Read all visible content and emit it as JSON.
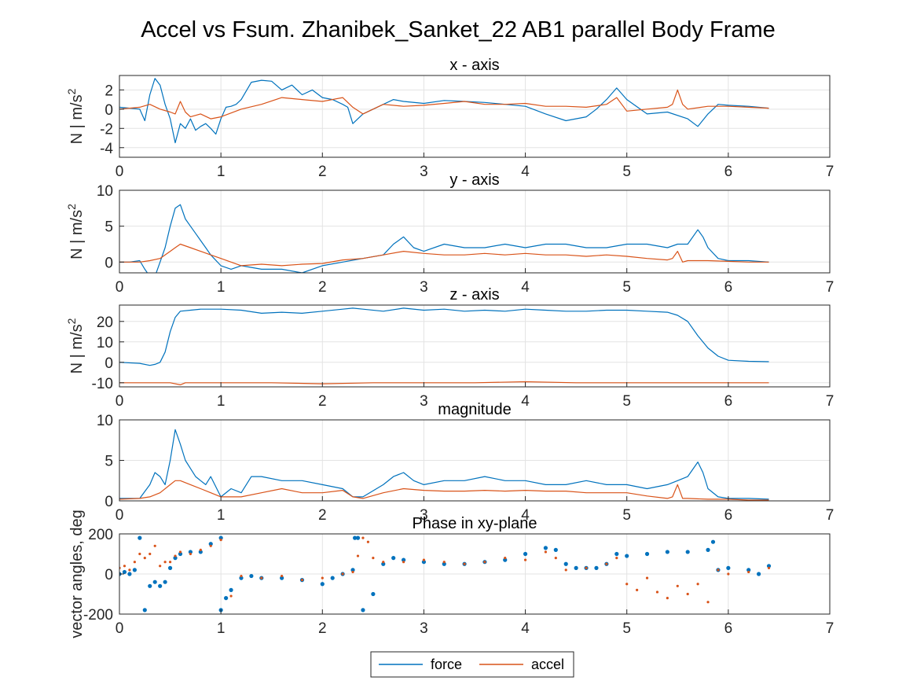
{
  "figure": {
    "title": "Accel vs Fsum. Zhanibek_Sanket_22    AB1    parallel  Body Frame"
  },
  "legend": {
    "position": "bottom-center",
    "entries": [
      {
        "label": "force",
        "color": "#0072BD"
      },
      {
        "label": "accel",
        "color": "#D95319"
      }
    ]
  },
  "chart_data": [
    {
      "type": "line",
      "title": "x - axis",
      "ylabel": "N | m/s^2",
      "xlim": [
        0,
        7
      ],
      "ylim": [
        -5,
        3.5
      ],
      "xticks": [
        0,
        1,
        2,
        3,
        4,
        5,
        6,
        7
      ],
      "yticks": [
        -4,
        -2,
        0,
        2
      ],
      "grid": true,
      "series": [
        {
          "name": "force",
          "color": "#0072BD",
          "x": [
            0,
            0.1,
            0.2,
            0.25,
            0.3,
            0.35,
            0.4,
            0.45,
            0.5,
            0.55,
            0.6,
            0.65,
            0.7,
            0.75,
            0.8,
            0.85,
            0.9,
            0.95,
            1.0,
            1.05,
            1.1,
            1.15,
            1.2,
            1.3,
            1.4,
            1.5,
            1.6,
            1.7,
            1.8,
            1.9,
            2.0,
            2.1,
            2.2,
            2.25,
            2.3,
            2.4,
            2.5,
            2.6,
            2.7,
            2.8,
            3.0,
            3.2,
            3.4,
            3.6,
            3.8,
            4.0,
            4.2,
            4.4,
            4.6,
            4.7,
            4.8,
            4.9,
            5.0,
            5.2,
            5.4,
            5.6,
            5.7,
            5.8,
            5.9,
            6.0,
            6.2,
            6.4
          ],
          "y": [
            0.2,
            0.1,
            0.0,
            -1.2,
            1.5,
            3.2,
            2.5,
            0.5,
            -1.0,
            -3.5,
            -1.5,
            -2.0,
            -1.0,
            -2.2,
            -1.8,
            -1.5,
            -2.0,
            -2.6,
            -1.0,
            0.2,
            0.3,
            0.5,
            1.0,
            2.8,
            3.0,
            2.9,
            2.0,
            2.5,
            1.5,
            2.0,
            1.2,
            1.0,
            0.5,
            0.2,
            -1.5,
            -0.5,
            0.0,
            0.5,
            1.0,
            0.8,
            0.6,
            0.9,
            0.8,
            0.7,
            0.5,
            0.3,
            -0.5,
            -1.2,
            -0.8,
            0.0,
            1.0,
            2.2,
            1.0,
            -0.5,
            -0.3,
            -1.0,
            -1.8,
            -0.5,
            0.5,
            0.4,
            0.3,
            0.1
          ]
        },
        {
          "name": "accel",
          "color": "#D95319",
          "x": [
            0,
            0.2,
            0.3,
            0.4,
            0.5,
            0.55,
            0.6,
            0.65,
            0.7,
            0.8,
            0.9,
            1.0,
            1.1,
            1.2,
            1.4,
            1.6,
            1.8,
            2.0,
            2.2,
            2.3,
            2.4,
            2.6,
            2.8,
            3.0,
            3.2,
            3.4,
            3.6,
            3.8,
            4.0,
            4.2,
            4.4,
            4.6,
            4.8,
            4.9,
            5.0,
            5.2,
            5.4,
            5.45,
            5.5,
            5.55,
            5.6,
            5.8,
            6.0,
            6.2,
            6.4
          ],
          "y": [
            0.0,
            0.2,
            0.5,
            0.0,
            -0.3,
            -0.5,
            0.8,
            -0.3,
            -0.8,
            -0.5,
            -1.0,
            -0.8,
            -0.4,
            0.0,
            0.5,
            1.2,
            1.0,
            0.8,
            1.2,
            0.2,
            -0.5,
            0.5,
            0.3,
            0.4,
            0.6,
            0.8,
            0.5,
            0.5,
            0.6,
            0.3,
            0.3,
            0.2,
            0.5,
            1.2,
            -0.2,
            0.0,
            0.2,
            0.5,
            2.0,
            0.5,
            0.0,
            0.3,
            0.3,
            0.2,
            0.1
          ]
        }
      ]
    },
    {
      "type": "line",
      "title": "y - axis",
      "ylabel": "N | m/s^2",
      "xlim": [
        0,
        7
      ],
      "ylim": [
        -1.5,
        10
      ],
      "xticks": [
        0,
        1,
        2,
        3,
        4,
        5,
        6,
        7
      ],
      "yticks": [
        0,
        5,
        10
      ],
      "grid": true,
      "series": [
        {
          "name": "force",
          "color": "#0072BD",
          "x": [
            0,
            0.1,
            0.2,
            0.25,
            0.3,
            0.35,
            0.4,
            0.45,
            0.5,
            0.55,
            0.6,
            0.65,
            0.7,
            0.75,
            0.8,
            0.85,
            0.9,
            1.0,
            1.1,
            1.2,
            1.4,
            1.6,
            1.8,
            2.0,
            2.2,
            2.4,
            2.6,
            2.7,
            2.8,
            2.9,
            3.0,
            3.2,
            3.4,
            3.6,
            3.8,
            4.0,
            4.2,
            4.4,
            4.6,
            4.8,
            5.0,
            5.2,
            5.4,
            5.5,
            5.6,
            5.7,
            5.75,
            5.8,
            5.9,
            6.0,
            6.2,
            6.4
          ],
          "y": [
            0.0,
            0.0,
            0.2,
            -1.0,
            -2.0,
            -2.0,
            0.0,
            2.0,
            5.0,
            7.5,
            8.0,
            6.0,
            5.0,
            4.0,
            3.0,
            2.0,
            1.0,
            -0.5,
            -1.0,
            -0.5,
            -1.0,
            -1.0,
            -1.5,
            -0.5,
            0.0,
            0.5,
            1.0,
            2.5,
            3.5,
            2.0,
            1.5,
            2.5,
            2.0,
            2.0,
            2.5,
            2.0,
            2.5,
            2.5,
            2.0,
            2.0,
            2.5,
            2.5,
            2.0,
            2.5,
            2.5,
            4.5,
            3.5,
            2.0,
            0.5,
            0.2,
            0.2,
            0.0
          ]
        },
        {
          "name": "accel",
          "color": "#D95319",
          "x": [
            0,
            0.2,
            0.3,
            0.4,
            0.5,
            0.55,
            0.6,
            0.7,
            0.8,
            0.9,
            1.0,
            1.2,
            1.4,
            1.6,
            1.8,
            2.0,
            2.2,
            2.4,
            2.6,
            2.8,
            3.0,
            3.2,
            3.4,
            3.6,
            3.8,
            4.0,
            4.2,
            4.4,
            4.6,
            4.8,
            5.0,
            5.2,
            5.4,
            5.45,
            5.5,
            5.55,
            5.6,
            5.8,
            6.0,
            6.2,
            6.4
          ],
          "y": [
            0.0,
            0.0,
            0.2,
            0.5,
            1.5,
            2.0,
            2.5,
            2.0,
            1.5,
            1.0,
            0.5,
            -0.5,
            -0.3,
            -0.5,
            -0.3,
            -0.2,
            0.3,
            0.5,
            1.0,
            1.5,
            1.2,
            1.0,
            1.0,
            1.2,
            1.0,
            1.2,
            1.0,
            1.0,
            0.8,
            1.0,
            0.8,
            0.5,
            0.3,
            0.5,
            1.5,
            0.0,
            0.2,
            0.2,
            0.1,
            0.0,
            0.0
          ]
        }
      ]
    },
    {
      "type": "line",
      "title": "z - axis",
      "ylabel": "N | m/s^2",
      "xlim": [
        0,
        7
      ],
      "ylim": [
        -12,
        28
      ],
      "xticks": [
        0,
        1,
        2,
        3,
        4,
        5,
        6,
        7
      ],
      "yticks": [
        -10,
        0,
        10,
        20
      ],
      "grid": true,
      "series": [
        {
          "name": "force",
          "color": "#0072BD",
          "x": [
            0,
            0.2,
            0.3,
            0.35,
            0.4,
            0.45,
            0.5,
            0.55,
            0.6,
            0.7,
            0.8,
            1.0,
            1.2,
            1.4,
            1.6,
            1.8,
            2.0,
            2.2,
            2.3,
            2.4,
            2.6,
            2.8,
            3.0,
            3.2,
            3.4,
            3.6,
            3.8,
            4.0,
            4.2,
            4.4,
            4.6,
            4.8,
            5.0,
            5.2,
            5.4,
            5.5,
            5.6,
            5.7,
            5.8,
            5.9,
            6.0,
            6.2,
            6.4
          ],
          "y": [
            0,
            -0.5,
            -1.5,
            -1.0,
            0.0,
            5.0,
            15.0,
            22.0,
            25.0,
            25.5,
            26.0,
            26.0,
            25.5,
            24.0,
            24.5,
            24.0,
            25.0,
            26.0,
            26.5,
            26.0,
            25.0,
            26.5,
            25.5,
            26.0,
            25.0,
            25.5,
            25.0,
            26.0,
            25.5,
            25.0,
            25.0,
            25.5,
            25.5,
            25.0,
            24.5,
            23.0,
            20.0,
            13.0,
            7.0,
            3.0,
            1.0,
            0.5,
            0.3
          ]
        },
        {
          "name": "accel",
          "color": "#D95319",
          "x": [
            0,
            0.5,
            0.6,
            0.65,
            0.7,
            1.0,
            1.5,
            2.0,
            2.5,
            3.0,
            3.5,
            4.0,
            4.5,
            5.0,
            5.5,
            6.0,
            6.4
          ],
          "y": [
            -10,
            -10,
            -11,
            -10,
            -10,
            -10,
            -10,
            -10.5,
            -10,
            -10,
            -10,
            -9.5,
            -10,
            -10,
            -10,
            -10,
            -10
          ]
        }
      ]
    },
    {
      "type": "line",
      "title": "magnitude",
      "ylabel": "",
      "xlim": [
        0,
        7
      ],
      "ylim": [
        0,
        10
      ],
      "xticks": [
        0,
        1,
        2,
        3,
        4,
        5,
        6,
        7
      ],
      "yticks": [
        0,
        5,
        10
      ],
      "grid": true,
      "series": [
        {
          "name": "force",
          "color": "#0072BD",
          "x": [
            0,
            0.2,
            0.3,
            0.35,
            0.4,
            0.45,
            0.5,
            0.55,
            0.6,
            0.65,
            0.7,
            0.75,
            0.8,
            0.85,
            0.9,
            1.0,
            1.1,
            1.2,
            1.3,
            1.4,
            1.6,
            1.8,
            2.0,
            2.2,
            2.3,
            2.4,
            2.6,
            2.7,
            2.8,
            2.9,
            3.0,
            3.2,
            3.4,
            3.6,
            3.8,
            4.0,
            4.2,
            4.4,
            4.6,
            4.8,
            5.0,
            5.2,
            5.4,
            5.5,
            5.6,
            5.7,
            5.75,
            5.8,
            5.9,
            6.0,
            6.2,
            6.4
          ],
          "y": [
            0.3,
            0.3,
            2.0,
            3.5,
            3.0,
            2.0,
            5.0,
            8.8,
            7.0,
            5.0,
            4.0,
            3.0,
            2.5,
            2.0,
            3.0,
            0.5,
            1.5,
            1.0,
            3.0,
            3.0,
            2.5,
            2.5,
            2.0,
            1.5,
            0.5,
            0.5,
            2.0,
            3.0,
            3.5,
            2.5,
            2.0,
            2.5,
            2.5,
            3.0,
            2.5,
            2.5,
            2.0,
            2.0,
            2.5,
            2.0,
            2.0,
            1.5,
            2.0,
            2.5,
            3.0,
            4.8,
            3.5,
            1.5,
            0.5,
            0.3,
            0.3,
            0.2
          ]
        },
        {
          "name": "accel",
          "color": "#D95319",
          "x": [
            0,
            0.2,
            0.3,
            0.4,
            0.5,
            0.55,
            0.6,
            0.7,
            0.8,
            0.9,
            1.0,
            1.2,
            1.4,
            1.6,
            1.8,
            2.0,
            2.2,
            2.3,
            2.4,
            2.6,
            2.8,
            3.0,
            3.2,
            3.4,
            3.6,
            3.8,
            4.0,
            4.2,
            4.4,
            4.6,
            4.8,
            5.0,
            5.2,
            5.4,
            5.45,
            5.5,
            5.55,
            5.6,
            5.8,
            6.0,
            6.2,
            6.4
          ],
          "y": [
            0.2,
            0.3,
            0.5,
            1.0,
            2.0,
            2.5,
            2.5,
            2.0,
            1.5,
            1.0,
            0.5,
            0.5,
            1.0,
            1.5,
            1.0,
            1.0,
            1.3,
            0.5,
            0.3,
            1.0,
            1.5,
            1.3,
            1.2,
            1.2,
            1.3,
            1.2,
            1.3,
            1.2,
            1.2,
            1.0,
            1.0,
            1.0,
            0.6,
            0.3,
            0.5,
            2.0,
            0.3,
            0.3,
            0.2,
            0.2,
            0.1,
            0.1
          ]
        }
      ]
    },
    {
      "type": "scatter",
      "title": "Phase in xy-plane",
      "ylabel": "vector angles, deg",
      "xlim": [
        0,
        7
      ],
      "ylim": [
        -200,
        200
      ],
      "xticks": [
        0,
        1,
        2,
        3,
        4,
        5,
        6,
        7
      ],
      "yticks": [
        -200,
        0,
        200
      ],
      "grid": true,
      "series": [
        {
          "name": "force",
          "color": "#0072BD",
          "x": [
            0.0,
            0.05,
            0.1,
            0.15,
            0.2,
            0.25,
            0.3,
            0.35,
            0.4,
            0.45,
            0.5,
            0.55,
            0.6,
            0.7,
            0.8,
            0.9,
            1.0,
            1.0,
            1.05,
            1.1,
            1.2,
            1.3,
            1.4,
            1.6,
            1.8,
            2.0,
            2.1,
            2.2,
            2.3,
            2.32,
            2.35,
            2.4,
            2.5,
            2.6,
            2.7,
            2.8,
            3.0,
            3.2,
            3.4,
            3.6,
            3.8,
            4.0,
            4.2,
            4.3,
            4.4,
            4.5,
            4.6,
            4.7,
            4.8,
            4.9,
            5.0,
            5.2,
            5.4,
            5.6,
            5.8,
            5.85,
            5.9,
            6.0,
            6.2,
            6.3,
            6.4
          ],
          "y": [
            0,
            10,
            0,
            20,
            180,
            -180,
            -60,
            -40,
            -60,
            -40,
            30,
            80,
            100,
            110,
            110,
            150,
            180,
            -180,
            -120,
            -80,
            -20,
            -10,
            -20,
            -20,
            -30,
            -50,
            -20,
            0,
            20,
            180,
            180,
            -180,
            -100,
            50,
            80,
            70,
            60,
            50,
            50,
            60,
            70,
            100,
            130,
            120,
            50,
            30,
            30,
            30,
            50,
            100,
            90,
            100,
            110,
            110,
            120,
            160,
            20,
            30,
            20,
            0,
            40
          ]
        },
        {
          "name": "accel",
          "color": "#D95319",
          "x": [
            0.0,
            0.05,
            0.1,
            0.15,
            0.2,
            0.25,
            0.3,
            0.35,
            0.4,
            0.45,
            0.5,
            0.55,
            0.6,
            0.7,
            0.8,
            0.9,
            1.0,
            1.1,
            1.2,
            1.4,
            1.6,
            1.8,
            2.0,
            2.2,
            2.3,
            2.35,
            2.4,
            2.45,
            2.5,
            2.6,
            2.8,
            3.0,
            3.2,
            3.4,
            3.6,
            3.8,
            4.0,
            4.2,
            4.3,
            4.4,
            4.6,
            4.8,
            4.9,
            5.0,
            5.1,
            5.2,
            5.3,
            5.4,
            5.5,
            5.6,
            5.7,
            5.8,
            5.9,
            6.0,
            6.2,
            6.4
          ],
          "y": [
            30,
            40,
            20,
            60,
            100,
            80,
            100,
            140,
            40,
            60,
            60,
            90,
            110,
            100,
            120,
            140,
            170,
            -110,
            -10,
            -20,
            -10,
            -30,
            -20,
            0,
            10,
            90,
            180,
            160,
            80,
            60,
            60,
            70,
            60,
            50,
            60,
            80,
            70,
            110,
            80,
            20,
            30,
            50,
            80,
            -50,
            -80,
            -20,
            -90,
            -120,
            -60,
            -100,
            -50,
            -140,
            20,
            0,
            10,
            30
          ]
        }
      ]
    }
  ]
}
